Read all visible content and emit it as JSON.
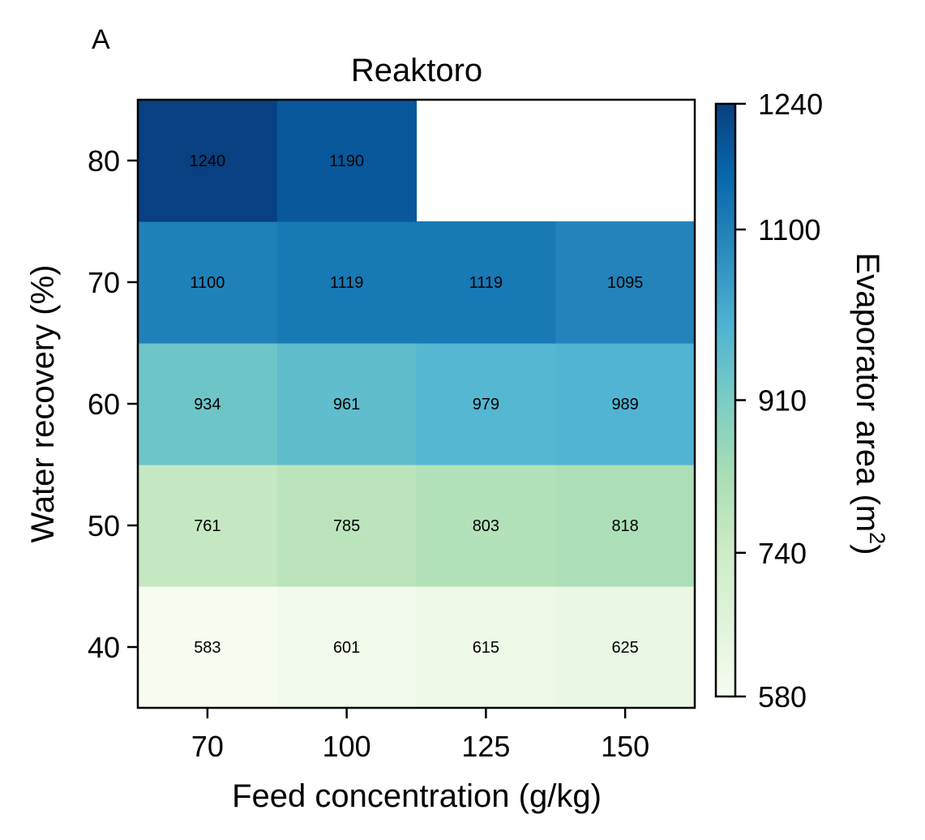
{
  "panel_label": "A",
  "chart_data": {
    "type": "heatmap",
    "title": "Reaktoro",
    "xlabel": "Feed concentration (g/kg)",
    "ylabel": "Water recovery (%)",
    "x_categories": [
      "70",
      "100",
      "125",
      "150"
    ],
    "y_categories": [
      "40",
      "50",
      "60",
      "70",
      "80"
    ],
    "values": [
      [
        583,
        601,
        615,
        625
      ],
      [
        761,
        785,
        803,
        818
      ],
      [
        934,
        961,
        979,
        989
      ],
      [
        1100,
        1119,
        1119,
        1095
      ],
      [
        1240,
        1190,
        null,
        null
      ]
    ],
    "colorbar": {
      "label": "Evaporator area (m",
      "label_superscript": "2",
      "label_close": ")",
      "min": 580,
      "max": 1240,
      "ticks": [
        "580",
        "740",
        "910",
        "1100",
        "1240"
      ],
      "colormap": "GnBu",
      "stops": [
        "#f7fcf0",
        "#e0f3db",
        "#ccebc5",
        "#a8ddb5",
        "#7bccc4",
        "#4eb3d3",
        "#2b8cbe",
        "#0868ac",
        "#084081"
      ]
    }
  }
}
